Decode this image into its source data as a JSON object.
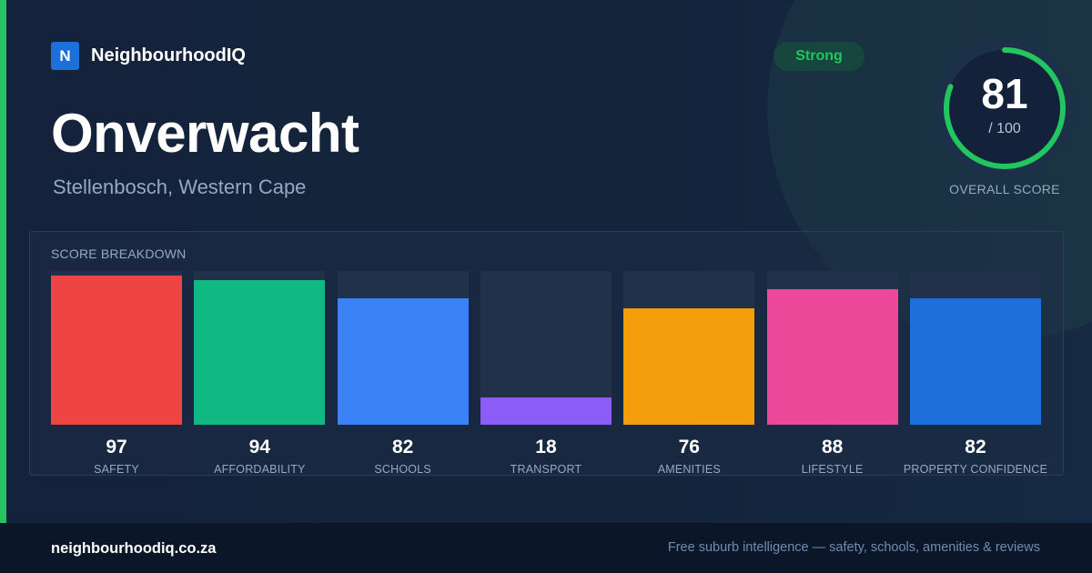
{
  "brand": {
    "logo_letter": "N",
    "name": "NeighbourhoodIQ"
  },
  "suburb": {
    "name": "Onverwacht",
    "location": "Stellenbosch, Western Cape"
  },
  "badge": {
    "label": "Strong",
    "color": "#22c55e"
  },
  "overall": {
    "score": "81",
    "max_label": "/ 100",
    "label": "OVERALL SCORE",
    "score_value": 81,
    "max_value": 100,
    "ring_color": "#22c55e"
  },
  "panel": {
    "title": "SCORE BREAKDOWN"
  },
  "chart_data": {
    "type": "bar",
    "title": "SCORE BREAKDOWN",
    "categories": [
      "SAFETY",
      "AFFORDABILITY",
      "SCHOOLS",
      "TRANSPORT",
      "AMENITIES",
      "LIFESTYLE",
      "PROPERTY CONFIDENCE"
    ],
    "values": [
      97,
      94,
      82,
      18,
      76,
      88,
      82
    ],
    "colors": [
      "#ef4444",
      "#10b981",
      "#3b82f6",
      "#8b5cf6",
      "#f59e0b",
      "#ec4899",
      "#1e6fd9"
    ],
    "ylim": [
      0,
      100
    ],
    "grid": false
  },
  "footer": {
    "url": "neighbourhoodiq.co.za",
    "tagline": "Free suburb intelligence — safety, schools, amenities & reviews"
  }
}
